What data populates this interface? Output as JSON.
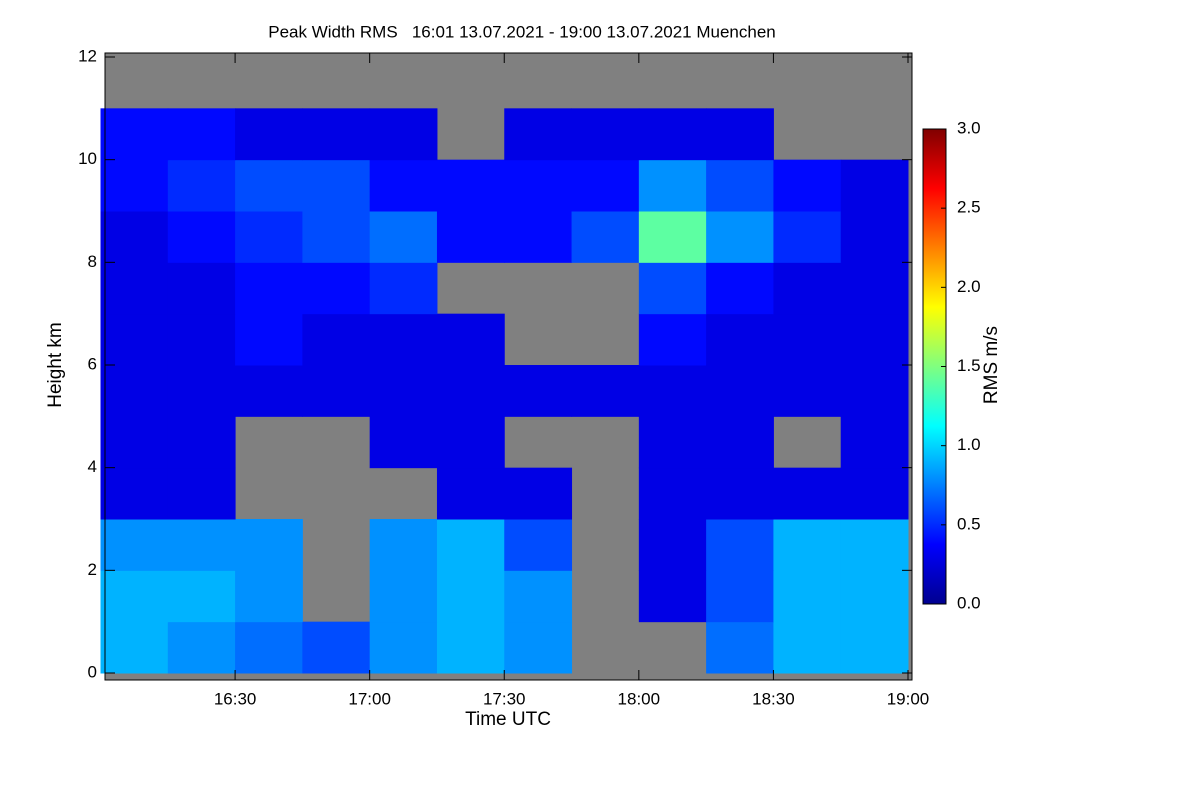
{
  "chart_data": {
    "type": "heatmap",
    "title": "Peak Width RMS   16:01 13.07.2021 - 19:00 13.07.2021 Muenchen",
    "x_label": "Time UTC",
    "y_label": "Height km",
    "colorbar_label": "RMS m/s",
    "xlim": [
      16.0167,
      19.0
    ],
    "xticks": [
      {
        "value": 16.5,
        "label": "16:30"
      },
      {
        "value": 17.0,
        "label": "17:00"
      },
      {
        "value": 17.5,
        "label": "17:30"
      },
      {
        "value": 18.0,
        "label": "18:00"
      },
      {
        "value": 18.5,
        "label": "18:30"
      },
      {
        "value": 19.0,
        "label": "19:00"
      }
    ],
    "ylim": [
      0,
      12
    ],
    "yticks": [
      0,
      2,
      4,
      6,
      8,
      10,
      12
    ],
    "zlim": [
      0,
      3
    ],
    "zticks": [
      {
        "value": 0,
        "label": "0.0"
      },
      {
        "value": 0.5,
        "label": "0.5"
      },
      {
        "value": 1,
        "label": "1.0"
      },
      {
        "value": 1.5,
        "label": "1.5"
      },
      {
        "value": 2,
        "label": "2.0"
      },
      {
        "value": 2.5,
        "label": "2.5"
      },
      {
        "value": 3,
        "label": "3.0"
      }
    ],
    "colormap": "jet",
    "missing_color": "#808080",
    "x": [
      16.125,
      16.375,
      16.625,
      16.875,
      17.125,
      17.375,
      17.625,
      17.875,
      18.125,
      18.375,
      18.625,
      18.875
    ],
    "y": [
      0.5,
      1.5,
      2.5,
      3.5,
      4.5,
      5.5,
      6.5,
      7.5,
      8.5,
      9.5,
      10.5,
      11.5
    ],
    "z": [
      [
        0.9,
        0.8,
        0.7,
        0.6,
        0.8,
        0.9,
        0.8,
        null,
        null,
        0.7,
        0.9,
        0.9
      ],
      [
        0.9,
        0.9,
        0.8,
        null,
        0.8,
        0.9,
        0.8,
        null,
        0.3,
        0.6,
        0.9,
        0.9
      ],
      [
        0.8,
        0.8,
        0.8,
        null,
        0.8,
        0.9,
        0.6,
        null,
        0.3,
        0.6,
        0.9,
        0.9
      ],
      [
        0.3,
        0.3,
        null,
        null,
        null,
        0.3,
        0.3,
        null,
        0.3,
        0.3,
        0.3,
        0.3
      ],
      [
        0.3,
        0.3,
        null,
        null,
        0.3,
        0.3,
        null,
        null,
        0.3,
        0.3,
        null,
        0.3
      ],
      [
        0.3,
        0.3,
        0.3,
        0.3,
        0.3,
        0.3,
        0.3,
        0.3,
        0.3,
        0.3,
        0.3,
        0.3
      ],
      [
        0.3,
        0.3,
        0.4,
        0.3,
        0.3,
        0.3,
        null,
        null,
        0.4,
        0.3,
        0.3,
        0.3
      ],
      [
        0.3,
        0.3,
        0.4,
        0.4,
        0.5,
        null,
        null,
        null,
        0.6,
        0.4,
        0.3,
        0.3
      ],
      [
        0.3,
        0.4,
        0.5,
        0.6,
        0.7,
        0.4,
        0.4,
        0.6,
        1.4,
        0.8,
        0.5,
        0.3
      ],
      [
        0.4,
        0.5,
        0.6,
        0.6,
        0.4,
        0.4,
        0.4,
        0.4,
        0.8,
        0.6,
        0.4,
        0.3
      ],
      [
        0.4,
        0.4,
        0.3,
        0.3,
        0.3,
        null,
        0.3,
        0.3,
        0.3,
        0.3,
        null,
        null
      ],
      [
        null,
        null,
        null,
        null,
        null,
        null,
        null,
        null,
        null,
        null,
        null,
        null
      ]
    ]
  }
}
